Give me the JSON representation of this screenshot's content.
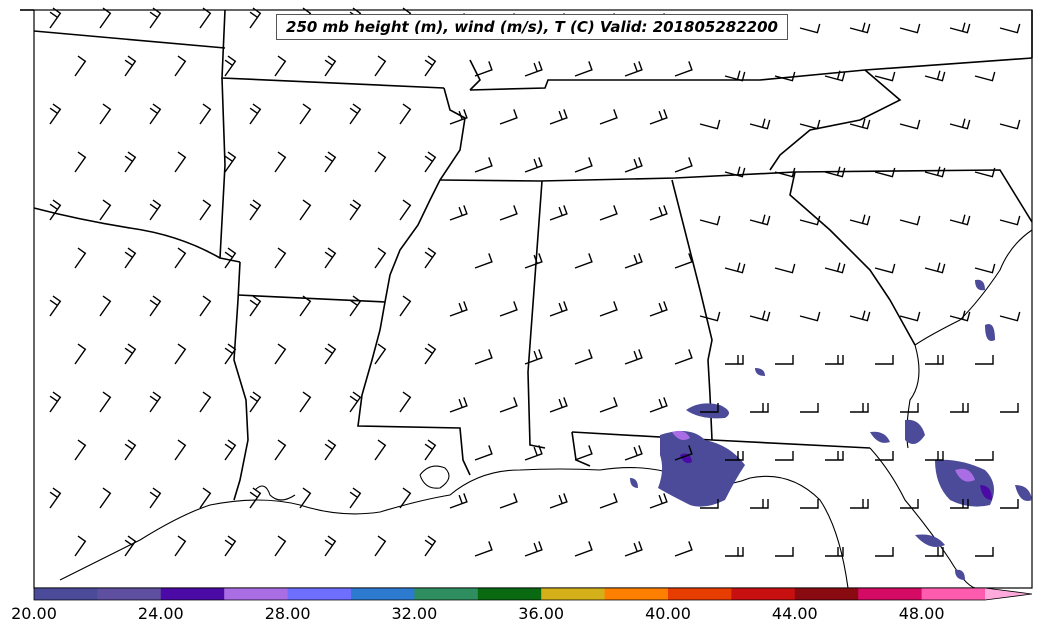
{
  "title": "250 mb height (m), wind (m/s), T (C) Valid: 201805282200",
  "colorbar": {
    "tick_labels": [
      "20.00",
      "24.00",
      "28.00",
      "32.00",
      "36.00",
      "40.00",
      "44.00",
      "48.00"
    ],
    "colors": [
      "#4b4b9a",
      "#5e4fa0",
      "#4b0aa6",
      "#a96de4",
      "#6e6eff",
      "#2c7bd0",
      "#2f8e5f",
      "#0a6a12",
      "#d4b01a",
      "#ff7f00",
      "#e83d00",
      "#c81010",
      "#8a0a12",
      "#d40a64",
      "#ff5cb0",
      "#ffaadd"
    ]
  },
  "map_features": {
    "projection_content": "Southeastern United States state boundaries and Gulf of Mexico coastline",
    "barb_rows": [
      {
        "y": 28,
        "dirs": [
          "nw",
          "nw",
          "nw",
          "nw",
          "w",
          "w",
          "w",
          "w",
          "w",
          "w",
          "w",
          "w",
          "w",
          "w",
          "w",
          "w",
          "w",
          "w",
          "w",
          "w",
          "w",
          "w",
          "w",
          "w"
        ]
      }
    ]
  }
}
